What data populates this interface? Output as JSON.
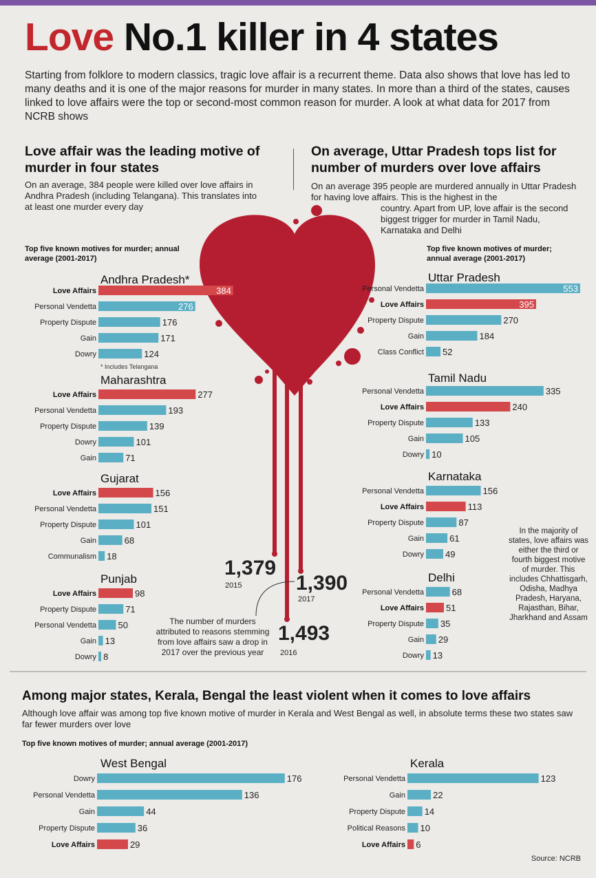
{
  "headline": {
    "word1": "Love",
    "rest": "No.1 killer in 4 states"
  },
  "intro": "Starting from folklore to modern classics, tragic love affair is a recurrent theme. Data also shows that love has led to many deaths and it is one of the major reasons for murder in many states. In more than a third of the states, causes linked to love affairs were the top or second-most common reason for murder. A look at what data for 2017 from NCRB shows",
  "left_section": {
    "title": "Love affair was the leading motive of murder in four states",
    "subtitle": "On an average, 384 people were killed over love affairs in Andhra Pradesh (including Telangana). This translates into at least one murder every day",
    "chart_heading": "Top five known motives for murder; annual average (2001-2017)"
  },
  "right_section": {
    "title": "On average, Uttar Pradesh tops list for number of murders over love affairs",
    "subtitle_a": "On an average 395 people are murdered annually in Uttar Pradesh for having love affairs. This is the highest in the",
    "subtitle_b": "country. Apart from UP, love affair is the second biggest trigger for murder in Tamil Nadu, Karnataka and Delhi",
    "chart_heading": "Top five known motives of murder; annual average (2001-2017)"
  },
  "bottom_section": {
    "title": "Among major states, Kerala, Bengal the least violent when it comes to love affairs",
    "subtitle": "Although love affair was among top five known motive of murder in Kerala and West Bengal as well, in absolute terms these two states saw far fewer murders over love",
    "chart_heading": "Top five known motives of murder; annual average (2001-2017)"
  },
  "footnote_ap": "* Includes Telangana",
  "side_note": "In the majority of states, love affairs was either the third or fourth biggest motive of murder. This includes Chhattisgarh, Odisha, Madhya Pradesh, Haryana, Rajasthan, Bihar, Jharkhand and Assam",
  "drop_note": "The number of murders attributed to reasons stemming from love affairs saw a drop in 2017 over the previous year",
  "source": "Source: NCRB",
  "colors": {
    "love": "#d4474a",
    "other": "#5aafc4",
    "heart": "#b51e30",
    "title_red": "#c2272d"
  },
  "chart_data": [
    {
      "type": "bar",
      "title": "Andhra Pradesh*",
      "categories": [
        "Love Affairs",
        "Personal Vendetta",
        "Property Dispute",
        "Gain",
        "Dowry"
      ],
      "values": [
        384,
        276,
        176,
        171,
        124
      ]
    },
    {
      "type": "bar",
      "title": "Maharashtra",
      "categories": [
        "Love Affairs",
        "Personal Vendetta",
        "Property Dispute",
        "Dowry",
        "Gain"
      ],
      "values": [
        277,
        193,
        139,
        101,
        71
      ]
    },
    {
      "type": "bar",
      "title": "Gujarat",
      "categories": [
        "Love Affairs",
        "Personal Vendetta",
        "Property Dispute",
        "Gain",
        "Communalism"
      ],
      "values": [
        156,
        151,
        101,
        68,
        18
      ]
    },
    {
      "type": "bar",
      "title": "Punjab",
      "categories": [
        "Love Affairs",
        "Property Dispute",
        "Personal Vendetta",
        "Gain",
        "Dowry"
      ],
      "values": [
        98,
        71,
        50,
        13,
        8
      ]
    },
    {
      "type": "bar",
      "title": "Uttar Pradesh",
      "categories": [
        "Personal Vendetta",
        "Love Affairs",
        "Property Dispute",
        "Gain",
        "Class Conflict"
      ],
      "values": [
        553,
        395,
        270,
        184,
        52
      ]
    },
    {
      "type": "bar",
      "title": "Tamil Nadu",
      "categories": [
        "Personal Vendetta",
        "Love Affairs",
        "Property Dispute",
        "Gain",
        "Dowry"
      ],
      "values": [
        335,
        240,
        133,
        105,
        10
      ]
    },
    {
      "type": "bar",
      "title": "Karnataka",
      "categories": [
        "Personal Vendetta",
        "Love Affairs",
        "Property Dispute",
        "Gain",
        "Dowry"
      ],
      "values": [
        156,
        113,
        87,
        61,
        49
      ]
    },
    {
      "type": "bar",
      "title": "Delhi",
      "categories": [
        "Personal Vendetta",
        "Love Affairs",
        "Property Dispute",
        "Gain",
        "Dowry"
      ],
      "values": [
        68,
        51,
        35,
        29,
        13
      ]
    },
    {
      "type": "bar",
      "title": "West Bengal",
      "categories": [
        "Dowry",
        "Personal Vendetta",
        "Gain",
        "Property Dispute",
        "Love Affairs"
      ],
      "values": [
        176,
        136,
        44,
        36,
        29
      ]
    },
    {
      "type": "bar",
      "title": "Kerala",
      "categories": [
        "Personal Vendetta",
        "Gain",
        "Property Dispute",
        "Political Reasons",
        "Love Affairs"
      ],
      "values": [
        123,
        22,
        14,
        10,
        6
      ]
    },
    {
      "type": "line",
      "title": "",
      "x": [
        "2015",
        "2016",
        "2017"
      ],
      "values": [
        1379,
        1493,
        1390
      ],
      "value_labels": [
        "1,379",
        "1,493",
        "1,390"
      ]
    }
  ]
}
